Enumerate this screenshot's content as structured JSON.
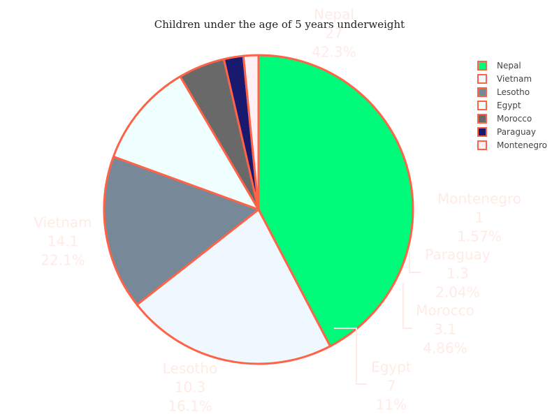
{
  "chart_data": {
    "type": "pie",
    "title": "Children under the age of 5 years underweight",
    "categories": [
      "Nepal",
      "Vietnam",
      "Lesotho",
      "Egypt",
      "Morocco",
      "Paraguay",
      "Montenegro"
    ],
    "values": [
      27,
      14.1,
      10.3,
      7,
      3.1,
      1.3,
      1
    ],
    "percent_labels": [
      "42.3%",
      "22.1%",
      "16.1%",
      "11%",
      "4.86%",
      "2.04%",
      "1.57%"
    ],
    "value_labels": [
      "27",
      "14.1",
      "10.3",
      "7",
      "3.1",
      "1.3",
      "1"
    ],
    "colors": [
      "#00fa7a",
      "#f0f8ff",
      "#778899",
      "#f0ffff",
      "#696969",
      "#191970",
      "#fff0f5"
    ],
    "border_color": "#ff6347",
    "legend": {
      "placement": "top-right",
      "entries": [
        "Nepal",
        "Vietnam",
        "Lesotho",
        "Egypt",
        "Morocco",
        "Paraguay",
        "Montenegro"
      ]
    },
    "label_color": "#ffebe6",
    "labels_outside": true
  }
}
